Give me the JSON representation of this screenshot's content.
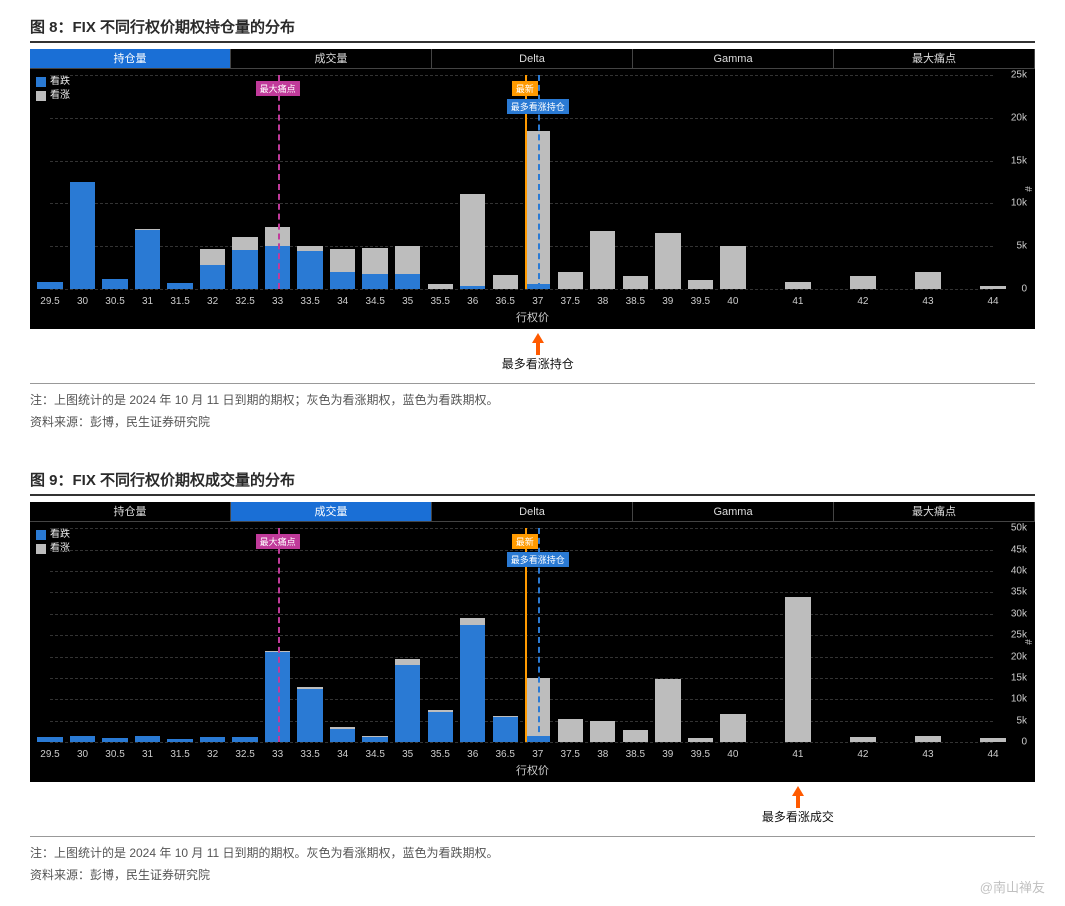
{
  "colors": {
    "put": "#2a7ad4",
    "call": "#bdbdbd",
    "bg": "#000000",
    "grid": "#333333",
    "axis_text": "#cccccc",
    "tab_active": "#1a6fd6",
    "maxpain_line": "#c03a9a",
    "latest_line": "#ff9a00",
    "maxcall_line": "#2a7ad4",
    "arrow": "#ff5a00",
    "title_border": "#333333"
  },
  "tabs": [
    "持仓量",
    "成交量",
    "Delta",
    "Gamma",
    "最大痛点"
  ],
  "legend": {
    "put": "看跌",
    "call": "看涨"
  },
  "xlabel": "行权价",
  "yunit": "#",
  "fig8": {
    "title": "图 8：FIX 不同行权价期权持仓量的分布",
    "active_tab": 0,
    "strikes": [
      29.5,
      30,
      30.5,
      31,
      31.5,
      32,
      32.5,
      33,
      33.5,
      34,
      34.5,
      35,
      35.5,
      36,
      36.5,
      37,
      37.5,
      38,
      38.5,
      39,
      39.5,
      40,
      41,
      42,
      43,
      44
    ],
    "put": [
      800,
      12500,
      1200,
      6900,
      700,
      2800,
      4600,
      5000,
      4400,
      2000,
      1800,
      1800,
      0,
      300,
      0,
      600,
      0,
      0,
      0,
      0,
      0,
      0,
      0,
      0,
      0,
      0
    ],
    "call": [
      0,
      0,
      0,
      100,
      0,
      1900,
      1500,
      2200,
      600,
      2700,
      3000,
      3200,
      600,
      10800,
      1600,
      17900,
      2000,
      6800,
      1500,
      6500,
      1000,
      5000,
      800,
      1500,
      2000,
      400
    ],
    "ymax": 25000,
    "yticks": [
      0,
      5000,
      10000,
      15000,
      20000,
      25000
    ],
    "ytick_labels": [
      "0",
      "5k",
      "10k",
      "15k",
      "20k",
      "25k"
    ],
    "maxpain": {
      "x": 33,
      "label": "最大痛点"
    },
    "latest": {
      "x": 36.8,
      "label": "最新"
    },
    "maxcall": {
      "x": 37,
      "label": "最多看涨持仓"
    },
    "arrow": {
      "x": 37,
      "label": "最多看涨持仓"
    },
    "note1": "注：上图统计的是 2024 年 10 月 11 日到期的期权；灰色为看涨期权，蓝色为看跌期权。",
    "note2": "资料来源：彭博，民生证券研究院"
  },
  "fig9": {
    "title": "图 9：FIX 不同行权价期权成交量的分布",
    "active_tab": 1,
    "strikes": [
      29.5,
      30,
      30.5,
      31,
      31.5,
      32,
      32.5,
      33,
      33.5,
      34,
      34.5,
      35,
      35.5,
      36,
      36.5,
      37,
      37.5,
      38,
      38.5,
      39,
      39.5,
      40,
      41,
      42,
      43,
      44
    ],
    "put": [
      1200,
      1400,
      1000,
      1500,
      700,
      1200,
      1200,
      21000,
      12500,
      3000,
      1200,
      18000,
      7000,
      27500,
      5800,
      1500,
      0,
      0,
      0,
      0,
      0,
      0,
      0,
      0,
      0,
      0
    ],
    "call": [
      0,
      0,
      0,
      0,
      0,
      0,
      0,
      400,
      300,
      600,
      300,
      1500,
      500,
      1500,
      400,
      13500,
      5500,
      5000,
      2800,
      14800,
      1000,
      6500,
      34000,
      1200,
      1500,
      1000
    ],
    "ymax": 50000,
    "yticks": [
      0,
      5000,
      10000,
      15000,
      20000,
      25000,
      30000,
      35000,
      40000,
      45000,
      50000
    ],
    "ytick_labels": [
      "0",
      "5k",
      "10k",
      "15k",
      "20k",
      "25k",
      "30k",
      "35k",
      "40k",
      "45k",
      "50k"
    ],
    "maxpain": {
      "x": 33,
      "label": "最大痛点"
    },
    "latest": {
      "x": 36.8,
      "label": "最新"
    },
    "maxcall": {
      "x": 37,
      "label": "最多看涨持仓"
    },
    "arrow": {
      "x": 41,
      "label": "最多看涨成交"
    },
    "note1": "注：上图统计的是 2024 年 10 月 11 日到期的期权。灰色为看涨期权，蓝色为看跌期权。",
    "note2": "资料来源：彭博，民生证券研究院"
  },
  "watermark": "@南山禅友"
}
